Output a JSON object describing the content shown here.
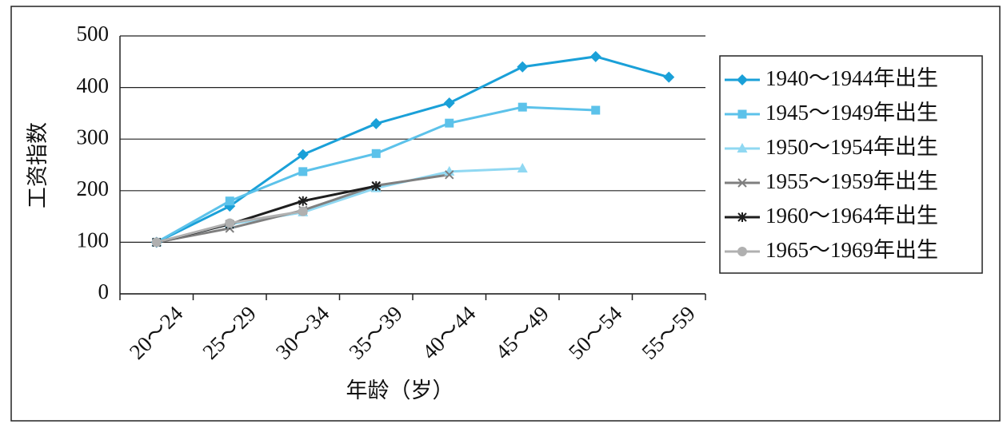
{
  "chart_data": {
    "type": "line",
    "y_label": "工资指数",
    "x_label": "年龄（岁）",
    "categories": [
      "20～24",
      "25～29",
      "30～34",
      "35～39",
      "40～44",
      "45～49",
      "50～54",
      "55～59"
    ],
    "series": [
      {
        "name": "1940～1944年出生",
        "color": "#1aa0d8",
        "marker": "diamond",
        "values": [
          100,
          170,
          270,
          330,
          370,
          440,
          460,
          420
        ]
      },
      {
        "name": "1945～1949年出生",
        "color": "#5cc2ea",
        "marker": "square",
        "values": [
          100,
          180,
          237,
          272,
          331,
          362,
          356,
          null
        ]
      },
      {
        "name": "1950～1954年出生",
        "color": "#90d8f2",
        "marker": "triangle",
        "values": [
          100,
          135,
          158,
          205,
          237,
          243,
          null,
          null
        ]
      },
      {
        "name": "1955～1959年出生",
        "color": "#7f7f7f",
        "marker": "x",
        "values": [
          100,
          127,
          162,
          210,
          231,
          null,
          null,
          null
        ]
      },
      {
        "name": "1960～1964年出生",
        "color": "#1e1e1e",
        "marker": "star",
        "values": [
          100,
          135,
          180,
          209,
          null,
          null,
          null,
          null
        ]
      },
      {
        "name": "1965～1969年出生",
        "color": "#b0b0b0",
        "marker": "circle",
        "values": [
          100,
          137,
          160,
          null,
          null,
          null,
          null,
          null
        ]
      }
    ],
    "ylim": [
      0,
      500
    ],
    "yticks": [
      0,
      100,
      200,
      300,
      400,
      500
    ],
    "grid": true,
    "legend": "right"
  }
}
